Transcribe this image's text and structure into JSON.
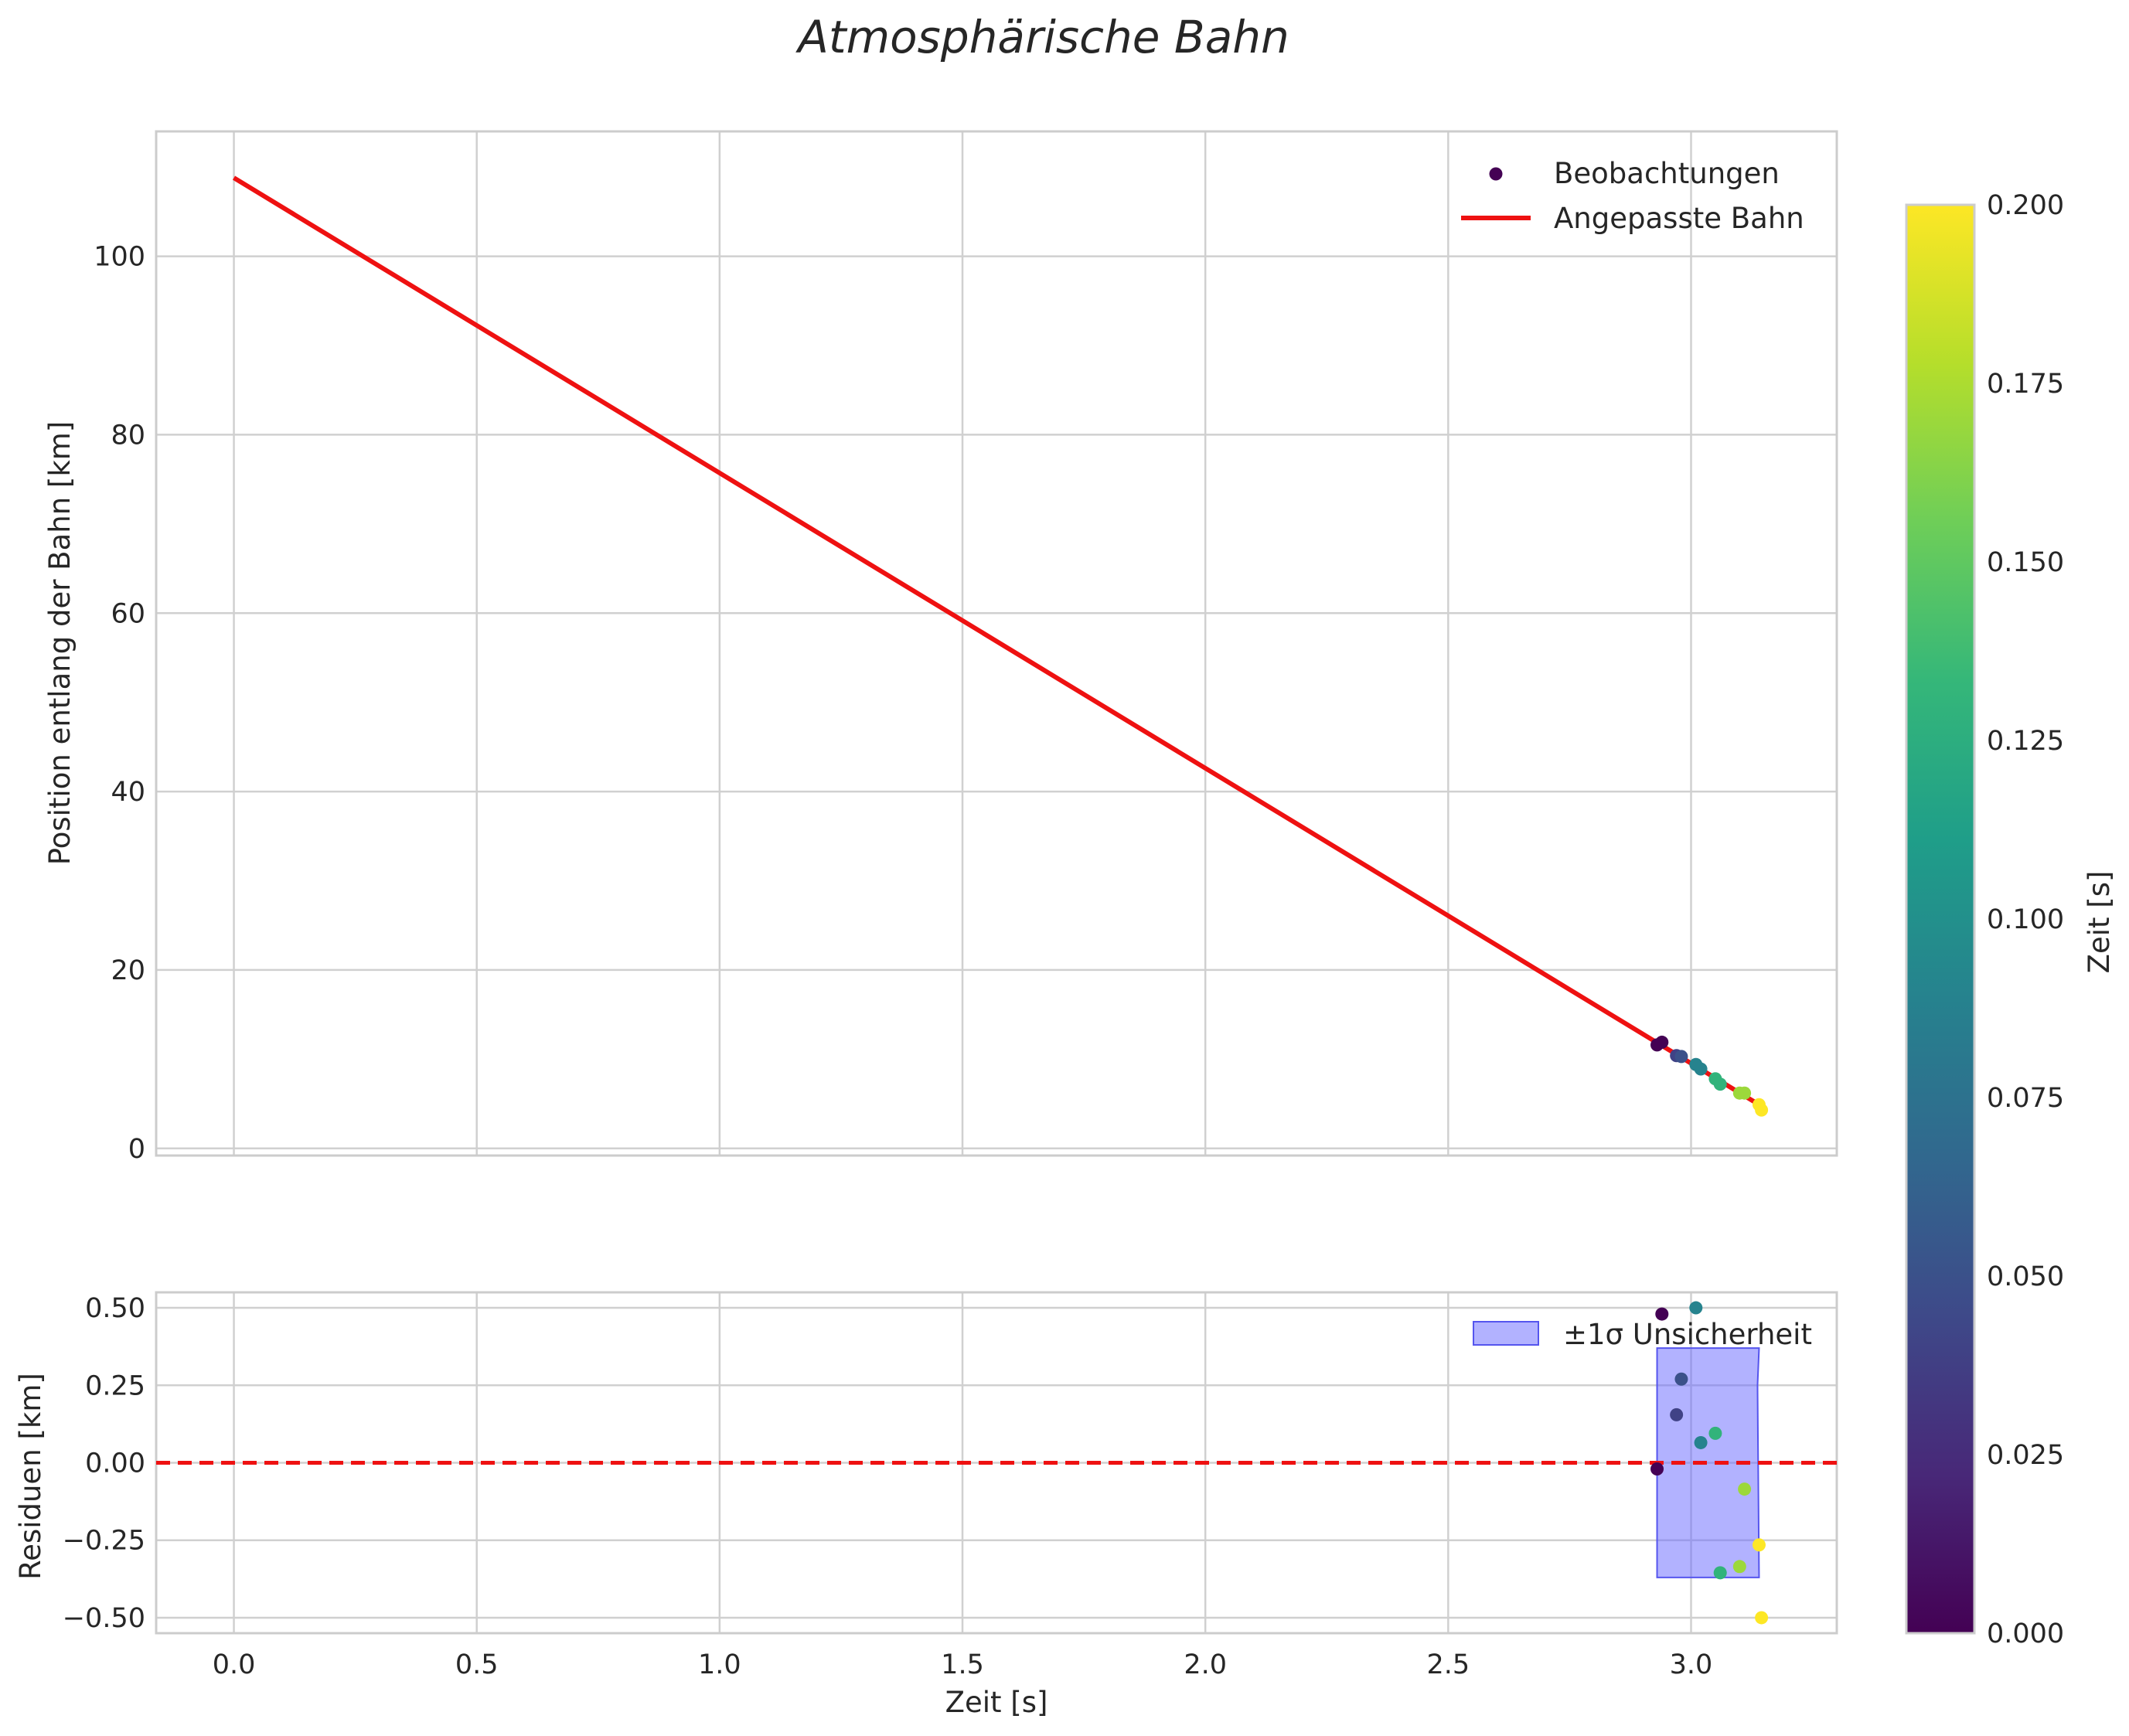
{
  "chart_data": [
    {
      "type": "scatter",
      "panel": "top",
      "title": "Atmosphärische Bahn",
      "xlabel": "",
      "ylabel": "Position entlang der Bahn [km]",
      "xlim": [
        -0.16,
        3.3
      ],
      "ylim": [
        -0.8,
        114
      ],
      "grid": true,
      "legend": "top-right",
      "xticks": [
        0.0,
        0.5,
        1.0,
        1.5,
        2.0,
        2.5,
        3.0
      ],
      "yticks": [
        0,
        20,
        40,
        60,
        80,
        100
      ],
      "ytick_labels": [
        "0",
        "20",
        "40",
        "60",
        "80",
        "100"
      ],
      "series": [
        {
          "name": "Beobachtungen",
          "kind": "scatter",
          "x": [
            2.93,
            2.94,
            2.97,
            2.98,
            3.01,
            3.02,
            3.05,
            3.06,
            3.1,
            3.11,
            3.14,
            3.145
          ],
          "y": [
            11.6,
            11.9,
            10.4,
            10.3,
            9.4,
            8.9,
            7.8,
            7.2,
            6.2,
            6.2,
            4.9,
            4.3
          ],
          "color_t": [
            0.0,
            0.0,
            0.04,
            0.05,
            0.09,
            0.09,
            0.13,
            0.13,
            0.17,
            0.17,
            0.2,
            0.2
          ]
        },
        {
          "name": "Angepasste Bahn",
          "kind": "line",
          "color": "#ee1111",
          "x": [
            0.0,
            3.14
          ],
          "y": [
            108.8,
            4.9
          ]
        }
      ]
    },
    {
      "type": "scatter",
      "panel": "bottom",
      "xlabel": "Zeit [s]",
      "ylabel": "Residuen [km]",
      "xlim": [
        -0.16,
        3.3
      ],
      "ylim": [
        -0.55,
        0.55
      ],
      "grid": true,
      "legend": "top-right",
      "xticks": [
        0.0,
        0.5,
        1.0,
        1.5,
        2.0,
        2.5,
        3.0
      ],
      "xtick_labels": [
        "0.0",
        "0.5",
        "1.0",
        "1.5",
        "2.0",
        "2.5",
        "3.0"
      ],
      "yticks": [
        0.5,
        0.25,
        0.0,
        -0.25,
        -0.5
      ],
      "ytick_labels": [
        "0.50",
        "0.25",
        "0.00",
        "−0.25",
        "−0.50"
      ],
      "zero_line": {
        "y": 0.0,
        "color": "#ee1111",
        "style": "dashed"
      },
      "band": {
        "name": "±1σ Unsicherheit",
        "color": "#6666ff",
        "x": [
          2.93,
          3.14,
          3.14,
          2.93
        ],
        "lower": -0.37,
        "upper": 0.37
      },
      "series": [
        {
          "name": "Residuen",
          "kind": "scatter",
          "x": [
            2.93,
            2.94,
            2.97,
            2.98,
            3.01,
            3.02,
            3.05,
            3.06,
            3.1,
            3.11,
            3.14,
            3.145
          ],
          "y": [
            -0.02,
            0.48,
            0.155,
            0.27,
            0.5,
            0.065,
            0.095,
            -0.355,
            -0.335,
            -0.085,
            -0.265,
            -0.5
          ],
          "color_t": [
            0.0,
            0.0,
            0.04,
            0.05,
            0.09,
            0.09,
            0.13,
            0.13,
            0.17,
            0.17,
            0.2,
            0.2
          ]
        }
      ]
    }
  ],
  "colorbar": {
    "label": "Zeit [s]",
    "min": 0.0,
    "max": 0.2,
    "ticks": [
      0.0,
      0.025,
      0.05,
      0.075,
      0.1,
      0.125,
      0.15,
      0.175,
      0.2
    ],
    "tick_labels": [
      "0.000",
      "0.025",
      "0.050",
      "0.075",
      "0.100",
      "0.125",
      "0.150",
      "0.175",
      "0.200"
    ],
    "colormap": "viridis",
    "stops": [
      "#440154",
      "#482878",
      "#3e4989",
      "#31688e",
      "#26828e",
      "#1f9e89",
      "#35b779",
      "#6ece58",
      "#b5de2b",
      "#fde725"
    ]
  }
}
